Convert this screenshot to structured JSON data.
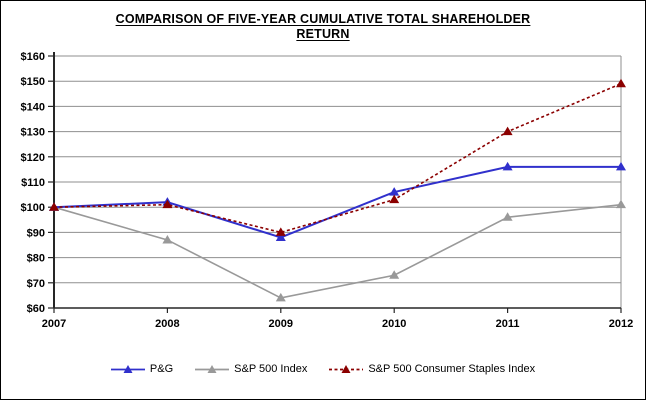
{
  "title": {
    "line1": "COMPARISON OF FIVE-YEAR CUMULATIVE TOTAL SHAREHOLDER",
    "line2": "RETURN"
  },
  "chart_data": {
    "type": "line",
    "x": [
      "2007",
      "2008",
      "2009",
      "2010",
      "2011",
      "2012"
    ],
    "series": [
      {
        "name": "P&G",
        "values": [
          100,
          102,
          88,
          106,
          116,
          116
        ],
        "color": "#3030CC",
        "style": "solid",
        "z": 2
      },
      {
        "name": "S&P 500 Index",
        "values": [
          100,
          87,
          64,
          73,
          96,
          101
        ],
        "color": "#999999",
        "style": "solid",
        "z": 1
      },
      {
        "name": "S&P 500 Consumer Staples Index",
        "values": [
          100,
          101,
          90,
          103,
          130,
          149
        ],
        "color": "#8B0000",
        "style": "dashed",
        "z": 3
      }
    ],
    "ylim": [
      60,
      160
    ],
    "ytick_step": 10,
    "ytick_prefix": "$",
    "grid": true,
    "legend_position": "bottom"
  },
  "colors": {
    "background": "#FFFFFF",
    "border": "#000000",
    "grid": "#8F8F8F",
    "axis": "#262626",
    "tick_text": "#000000"
  }
}
